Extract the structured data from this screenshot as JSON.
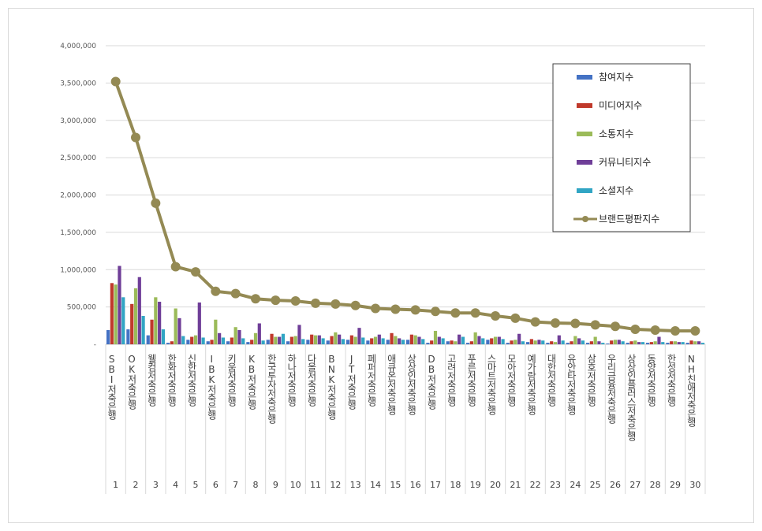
{
  "chart_data": {
    "type": "bar",
    "ylim": [
      0,
      4000000
    ],
    "y_ticks": [
      "-",
      "500,000",
      "1,000,000",
      "1,500,000",
      "2,000,000",
      "2,500,000",
      "3,000,000",
      "3,500,000",
      "4,000,000"
    ],
    "grid": true,
    "legend_position": "top-right",
    "categories": [
      {
        "index": "1",
        "label": "SBI저축은행"
      },
      {
        "index": "2",
        "label": "OK저축은행"
      },
      {
        "index": "3",
        "label": "웰컴저축은행"
      },
      {
        "index": "4",
        "label": "한화저축은행"
      },
      {
        "index": "5",
        "label": "신한저축은행"
      },
      {
        "index": "6",
        "label": "IBK저축은행"
      },
      {
        "index": "7",
        "label": "키움저축은행"
      },
      {
        "index": "8",
        "label": "KB저축은행"
      },
      {
        "index": "9",
        "label": "한국투자저축은행"
      },
      {
        "index": "10",
        "label": "하나저축은행"
      },
      {
        "index": "11",
        "label": "다올저축은행"
      },
      {
        "index": "12",
        "label": "BNK저축은행"
      },
      {
        "index": "13",
        "label": "JT저축은행"
      },
      {
        "index": "14",
        "label": "페퍼저축은행"
      },
      {
        "index": "15",
        "label": "애큐온저축은행"
      },
      {
        "index": "16",
        "label": "상상인저축은행"
      },
      {
        "index": "17",
        "label": "DB저축은행"
      },
      {
        "index": "18",
        "label": "고려저축은행"
      },
      {
        "index": "19",
        "label": "푸른저축은행"
      },
      {
        "index": "20",
        "label": "스마트저축은행"
      },
      {
        "index": "21",
        "label": "모아저축은행"
      },
      {
        "index": "22",
        "label": "예가람저축은행"
      },
      {
        "index": "23",
        "label": "대한저축은행"
      },
      {
        "index": "24",
        "label": "유안타저축은행"
      },
      {
        "index": "25",
        "label": "삼호저축은행"
      },
      {
        "index": "26",
        "label": "우리금융저축은행"
      },
      {
        "index": "27",
        "label": "상상인플러스저축은행"
      },
      {
        "index": "28",
        "label": "동양저축은행"
      },
      {
        "index": "29",
        "label": "한성저축은행"
      },
      {
        "index": "30",
        "label": "NH친애저축은행"
      }
    ],
    "series": [
      {
        "name": "참여지수",
        "kind": "bar",
        "color": "#4472c4",
        "values": [
          190000,
          200000,
          120000,
          20000,
          60000,
          40000,
          40000,
          30000,
          60000,
          40000,
          60000,
          50000,
          60000,
          50000,
          60000,
          60000,
          20000,
          40000,
          20000,
          60000,
          20000,
          30000,
          20000,
          20000,
          20000,
          10000,
          20000,
          20000,
          20000,
          20000
        ]
      },
      {
        "name": "미디어지수",
        "kind": "bar",
        "color": "#c0392b",
        "values": [
          820000,
          540000,
          330000,
          40000,
          100000,
          60000,
          90000,
          60000,
          140000,
          100000,
          130000,
          110000,
          120000,
          80000,
          150000,
          130000,
          50000,
          50000,
          40000,
          80000,
          50000,
          70000,
          40000,
          40000,
          40000,
          50000,
          40000,
          30000,
          40000,
          50000
        ]
      },
      {
        "name": "소통지수",
        "kind": "bar",
        "color": "#9bbb59",
        "values": [
          800000,
          750000,
          630000,
          480000,
          120000,
          330000,
          230000,
          150000,
          100000,
          110000,
          120000,
          160000,
          100000,
          100000,
          110000,
          120000,
          180000,
          40000,
          160000,
          100000,
          60000,
          50000,
          30000,
          110000,
          100000,
          60000,
          50000,
          40000,
          40000,
          40000
        ]
      },
      {
        "name": "커뮤니티지수",
        "kind": "bar",
        "color": "#6f3e98",
        "values": [
          1050000,
          900000,
          570000,
          350000,
          560000,
          150000,
          190000,
          280000,
          100000,
          260000,
          120000,
          130000,
          220000,
          130000,
          80000,
          100000,
          100000,
          130000,
          110000,
          100000,
          140000,
          60000,
          120000,
          80000,
          40000,
          60000,
          30000,
          100000,
          30000,
          40000
        ]
      },
      {
        "name": "소셜지수",
        "kind": "bar",
        "color": "#31a5c4",
        "values": [
          630000,
          380000,
          200000,
          110000,
          90000,
          90000,
          80000,
          50000,
          140000,
          70000,
          80000,
          70000,
          90000,
          80000,
          60000,
          70000,
          80000,
          100000,
          80000,
          70000,
          40000,
          50000,
          50000,
          50000,
          20000,
          40000,
          30000,
          30000,
          30000,
          20000
        ]
      },
      {
        "name": "브랜드평판지수",
        "kind": "line",
        "color": "#948a54",
        "values": [
          3520000,
          2770000,
          1890000,
          1040000,
          970000,
          710000,
          680000,
          610000,
          590000,
          580000,
          550000,
          540000,
          520000,
          480000,
          470000,
          460000,
          440000,
          420000,
          420000,
          380000,
          350000,
          300000,
          285000,
          280000,
          260000,
          240000,
          200000,
          190000,
          180000,
          180000
        ]
      }
    ]
  }
}
